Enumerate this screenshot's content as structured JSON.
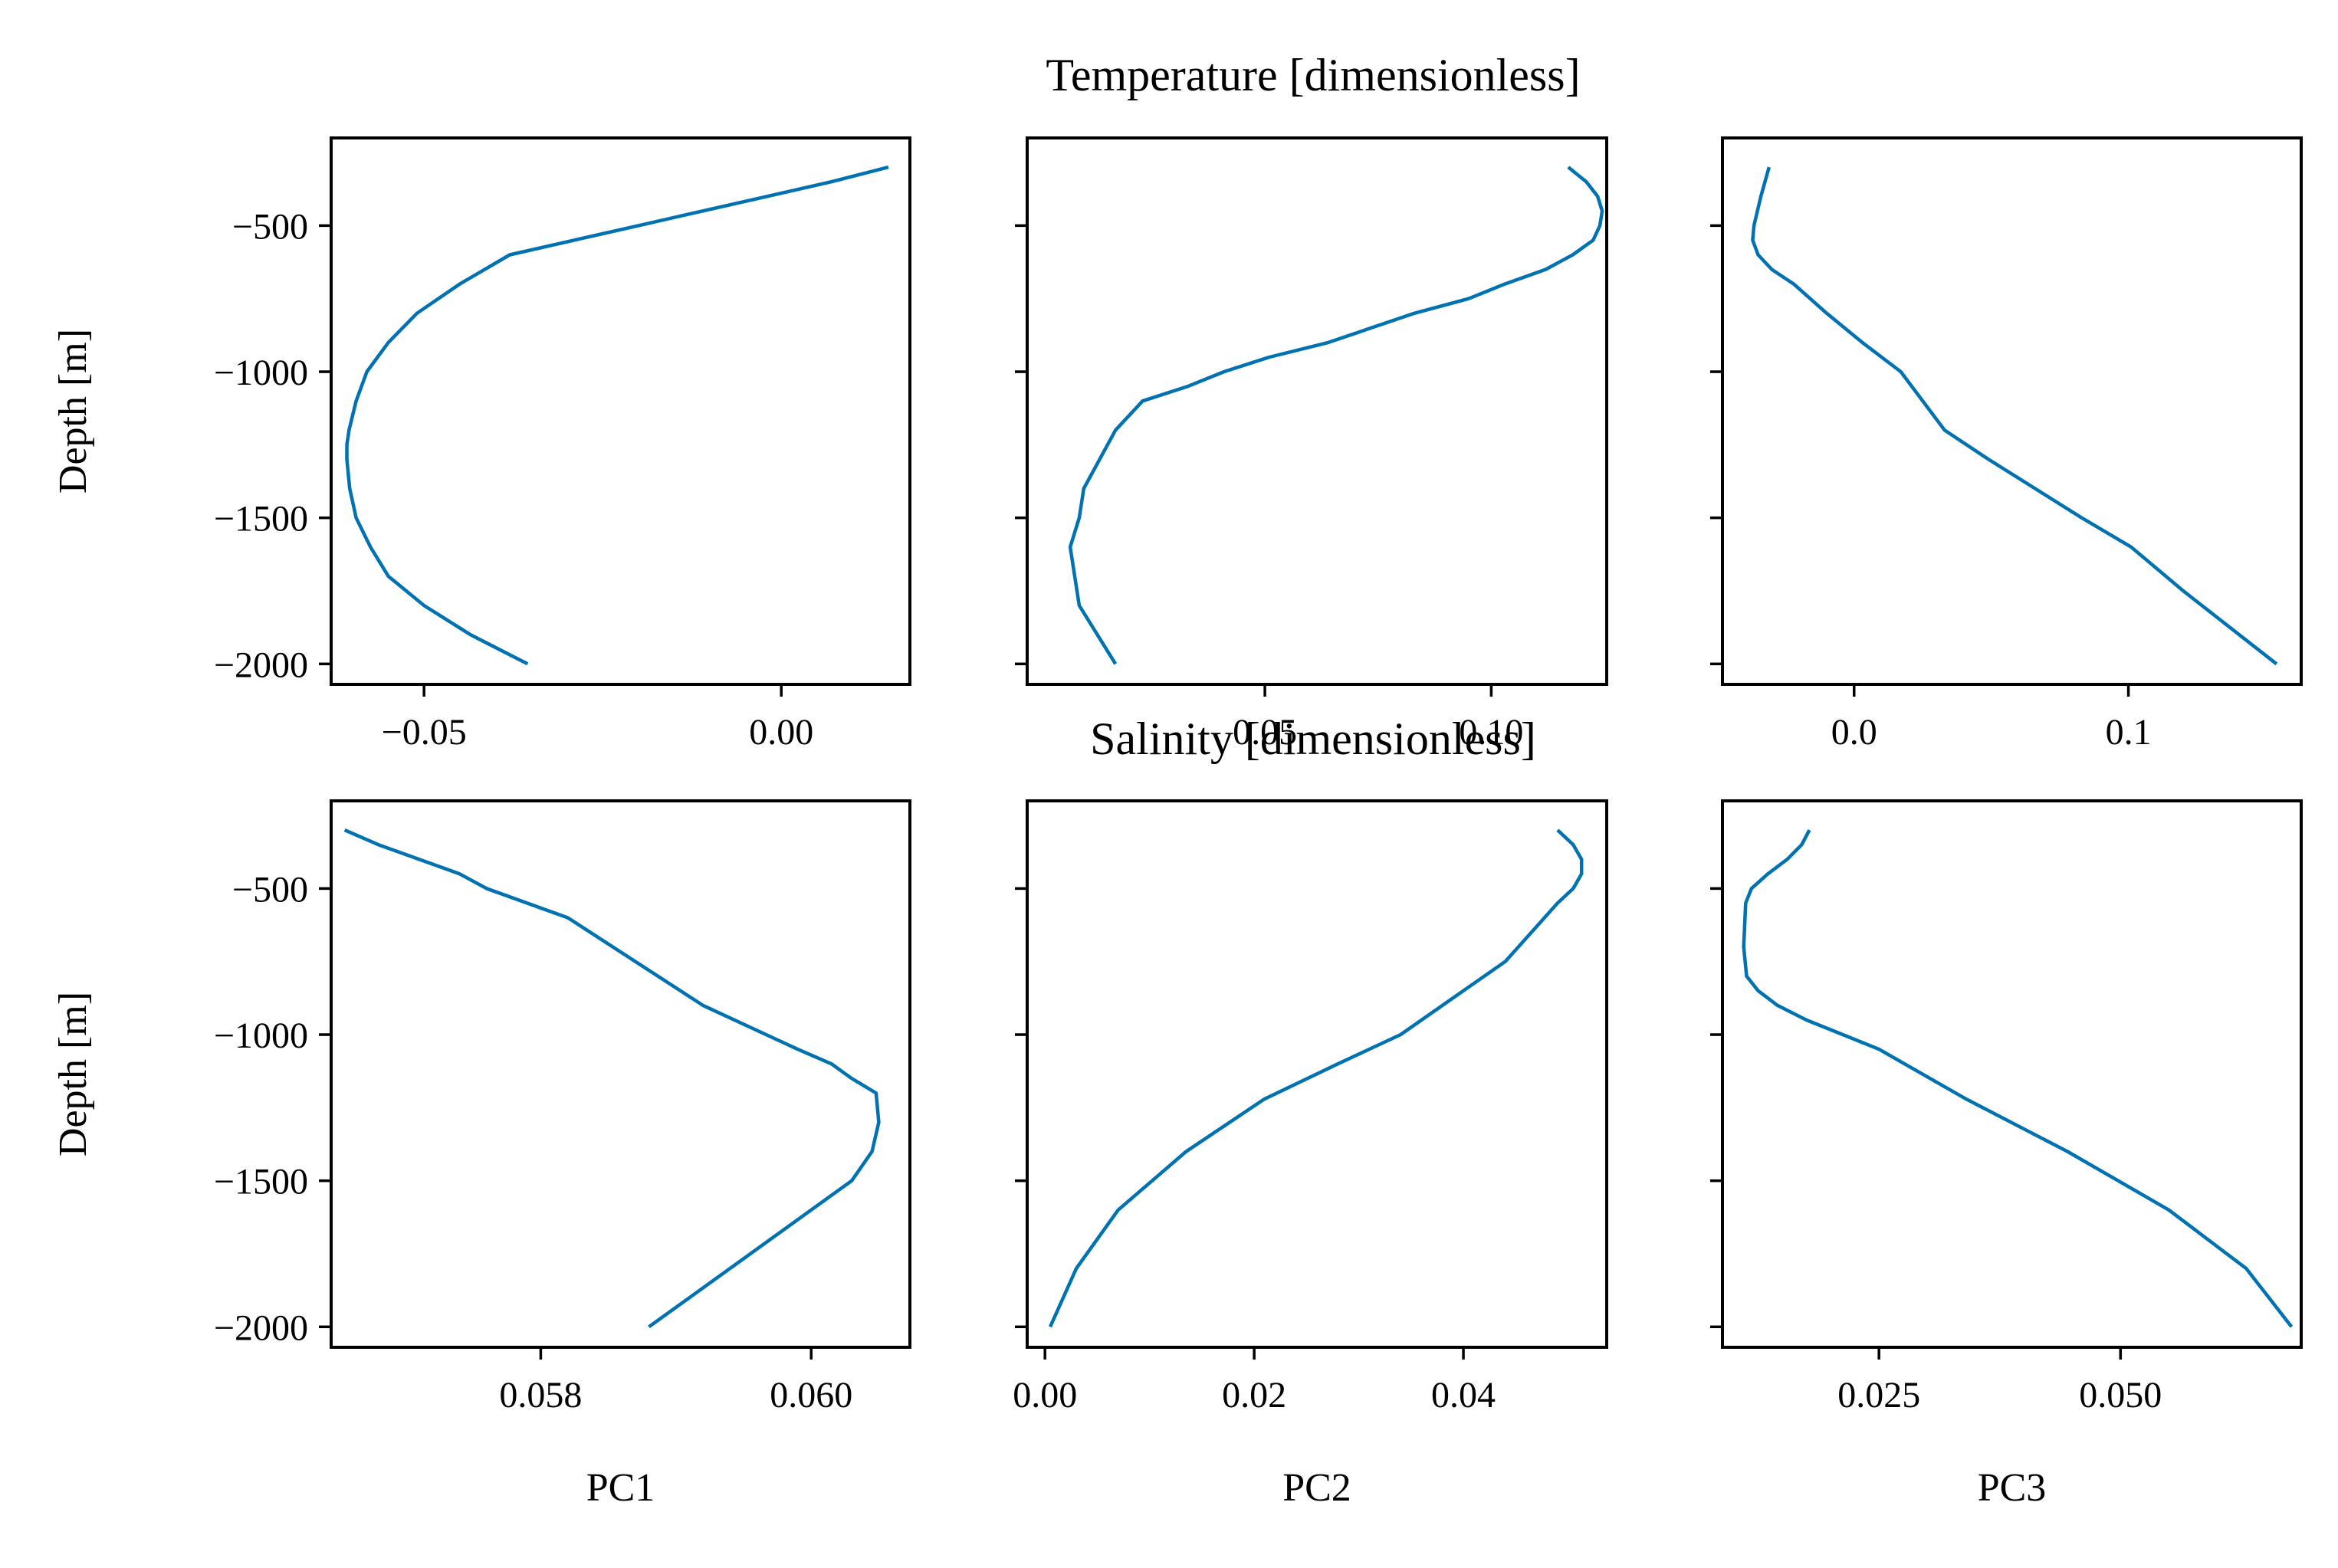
{
  "figure": {
    "row_titles": [
      "Temperature [dimensionless]",
      "Salinity [dimensionless]"
    ],
    "line_color": "#0072b2",
    "frame_color": "#000000",
    "background": "#ffffff"
  },
  "chart_data": [
    {
      "type": "line",
      "title": "Temperature [dimensionless]",
      "xlabel": "",
      "ylabel": "Depth [m]",
      "xlim": [
        -0.063,
        0.018
      ],
      "ylim": [
        -2070,
        -200
      ],
      "xticks": [
        -0.05,
        0.0
      ],
      "xtick_labels": [
        "−0.05",
        "0.00"
      ],
      "yticks": [
        -500,
        -1000,
        -1500,
        -2000
      ],
      "ytick_labels": [
        "−500",
        "−1000",
        "−1500",
        "−2000"
      ],
      "grid": false,
      "series": [
        {
          "x": [
            0.015,
            0.007,
            -0.002,
            -0.011,
            -0.02,
            -0.029,
            -0.038,
            -0.045,
            -0.051,
            -0.055,
            -0.058,
            -0.0595,
            -0.0605,
            -0.0608,
            -0.0608,
            -0.0604,
            -0.0595,
            -0.0575,
            -0.055,
            -0.05,
            -0.0435,
            -0.0355
          ],
          "y": [
            -300,
            -350,
            -400,
            -450,
            -500,
            -550,
            -600,
            -700,
            -800,
            -900,
            -1000,
            -1100,
            -1200,
            -1250,
            -1300,
            -1400,
            -1500,
            -1600,
            -1700,
            -1800,
            -1900,
            -2000
          ]
        }
      ]
    },
    {
      "type": "line",
      "title": "",
      "xlabel": "",
      "ylabel": "",
      "xlim": [
        -0.0025,
        0.1255
      ],
      "ylim": [
        -2070,
        -200
      ],
      "xticks": [
        0.05,
        0.1
      ],
      "xtick_labels": [
        "0.05",
        "0.10"
      ],
      "yticks": [
        -500,
        -1000,
        -1500,
        -2000
      ],
      "ytick_labels": [
        "",
        "",
        "",
        ""
      ],
      "grid": false,
      "series": [
        {
          "x": [
            0.117,
            0.121,
            0.1235,
            0.1245,
            0.124,
            0.1225,
            0.118,
            0.112,
            0.103,
            0.095,
            0.083,
            0.064,
            0.051,
            0.041,
            0.033,
            0.023,
            0.017,
            0.01,
            0.009,
            0.007,
            0.009,
            0.017
          ],
          "y": [
            -300,
            -350,
            -400,
            -450,
            -500,
            -550,
            -600,
            -650,
            -700,
            -750,
            -800,
            -900,
            -950,
            -1000,
            -1050,
            -1100,
            -1200,
            -1400,
            -1500,
            -1600,
            -1800,
            -2000
          ]
        }
      ]
    },
    {
      "type": "line",
      "title": "",
      "xlabel": "",
      "ylabel": "",
      "xlim": [
        -0.048,
        0.163
      ],
      "ylim": [
        -2070,
        -200
      ],
      "xticks": [
        0.0,
        0.1
      ],
      "xtick_labels": [
        "0.0",
        "0.1"
      ],
      "yticks": [
        -500,
        -1000,
        -1500,
        -2000
      ],
      "ytick_labels": [
        "",
        "",
        "",
        ""
      ],
      "grid": false,
      "series": [
        {
          "x": [
            -0.031,
            -0.034,
            -0.0365,
            -0.037,
            -0.035,
            -0.03,
            -0.022,
            -0.01,
            0.003,
            0.017,
            0.033,
            0.049,
            0.066,
            0.083,
            0.101,
            0.12,
            0.154
          ],
          "y": [
            -300,
            -400,
            -500,
            -550,
            -600,
            -650,
            -700,
            -800,
            -900,
            -1000,
            -1200,
            -1300,
            -1400,
            -1500,
            -1600,
            -1750,
            -2000
          ]
        }
      ]
    },
    {
      "type": "line",
      "title": "Salinity [dimensionless]",
      "xlabel": "PC1",
      "ylabel": "Depth [m]",
      "xlim": [
        0.05645,
        0.06073
      ],
      "ylim": [
        -2070,
        -200
      ],
      "xticks": [
        0.058,
        0.06
      ],
      "xtick_labels": [
        "0.058",
        "0.060"
      ],
      "yticks": [
        -500,
        -1000,
        -1500,
        -2000
      ],
      "ytick_labels": [
        "−500",
        "−1000",
        "−1500",
        "−2000"
      ],
      "grid": false,
      "series": [
        {
          "x": [
            0.05655,
            0.0568,
            0.0571,
            0.0574,
            0.0576,
            0.0582,
            0.0592,
            0.0599,
            0.06015,
            0.0603,
            0.06048,
            0.0605,
            0.06045,
            0.0603,
            0.06,
            0.0594,
            0.0588
          ],
          "y": [
            -300,
            -350,
            -400,
            -450,
            -500,
            -600,
            -900,
            -1050,
            -1100,
            -1150,
            -1200,
            -1300,
            -1400,
            -1500,
            -1600,
            -1800,
            -2000
          ]
        }
      ]
    },
    {
      "type": "line",
      "title": "",
      "xlabel": "PC2",
      "ylabel": "",
      "xlim": [
        -0.0017,
        0.0537
      ],
      "ylim": [
        -2070,
        -200
      ],
      "xticks": [
        0.0,
        0.02,
        0.04
      ],
      "xtick_labels": [
        "0.00",
        "0.02",
        "0.04"
      ],
      "yticks": [
        -500,
        -1000,
        -1500,
        -2000
      ],
      "ytick_labels": [
        "",
        "",
        "",
        ""
      ],
      "grid": false,
      "series": [
        {
          "x": [
            0.049,
            0.0505,
            0.0513,
            0.0513,
            0.0505,
            0.049,
            0.0465,
            0.044,
            0.04,
            0.034,
            0.028,
            0.021,
            0.0135,
            0.007,
            0.003,
            0.0005
          ],
          "y": [
            -300,
            -350,
            -400,
            -450,
            -500,
            -550,
            -650,
            -750,
            -850,
            -1000,
            -1100,
            -1220,
            -1400,
            -1600,
            -1800,
            -2000
          ]
        }
      ]
    },
    {
      "type": "line",
      "title": "",
      "xlabel": "PC3",
      "ylabel": "",
      "xlim": [
        0.0088,
        0.0687
      ],
      "ylim": [
        -2070,
        -200
      ],
      "xticks": [
        0.025,
        0.05
      ],
      "xtick_labels": [
        "0.025",
        "0.050"
      ],
      "yticks": [
        -500,
        -1000,
        -1500,
        -2000
      ],
      "ytick_labels": [
        "",
        "",
        "",
        ""
      ],
      "grid": false,
      "series": [
        {
          "x": [
            0.0178,
            0.017,
            0.0155,
            0.0135,
            0.0118,
            0.0112,
            0.011,
            0.0113,
            0.0125,
            0.0145,
            0.0175,
            0.025,
            0.034,
            0.0445,
            0.055,
            0.063,
            0.0677
          ],
          "y": [
            -300,
            -350,
            -400,
            -450,
            -500,
            -550,
            -700,
            -800,
            -850,
            -900,
            -950,
            -1050,
            -1220,
            -1400,
            -1600,
            -1800,
            -2000
          ]
        }
      ]
    }
  ]
}
